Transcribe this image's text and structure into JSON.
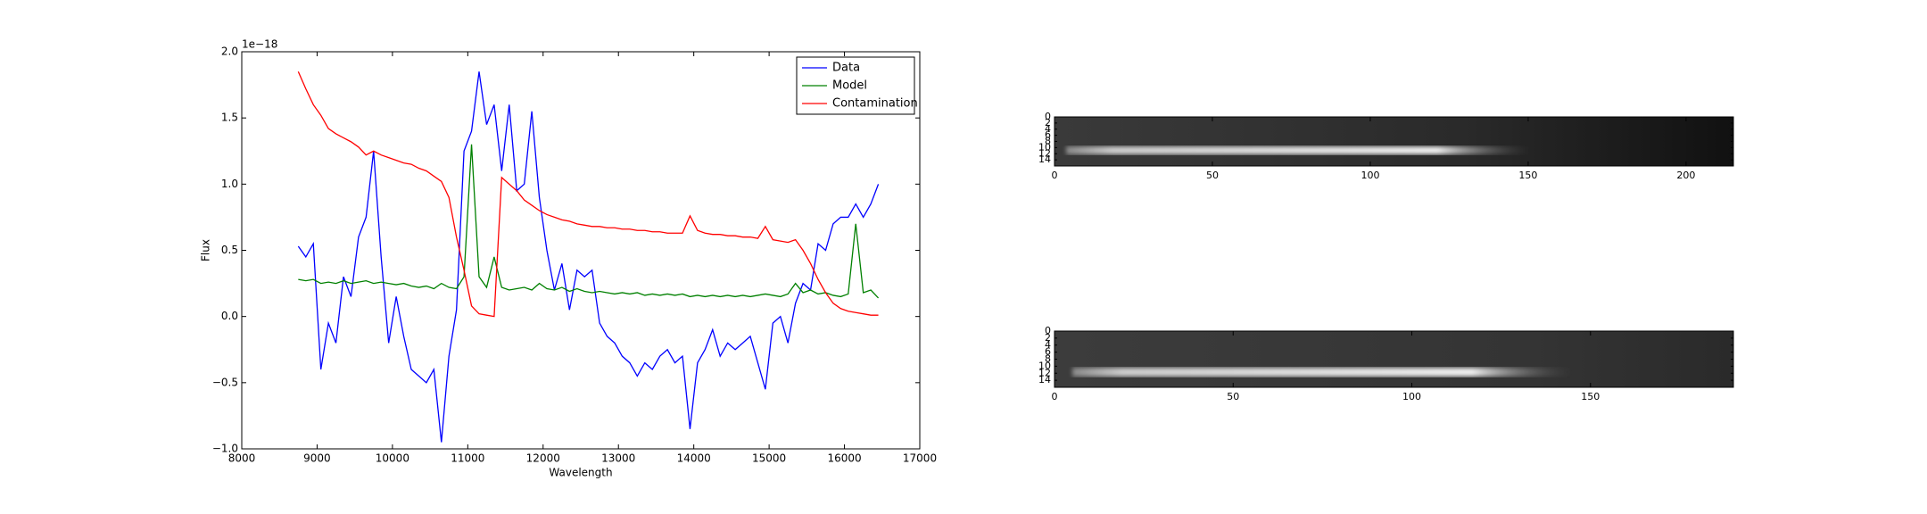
{
  "chart_data": [
    {
      "type": "line",
      "x_label": "Wavelength",
      "y_label": "Flux",
      "y_offset_label": "1e−18",
      "legend": "upper right",
      "xlim": [
        8000,
        17000
      ],
      "xticks": [
        8000,
        9000,
        10000,
        11000,
        12000,
        13000,
        14000,
        15000,
        16000,
        17000
      ],
      "ylim": [
        -1.0,
        2.0
      ],
      "yticks": [
        {
          "value": -1.0,
          "label": "−1.0"
        },
        {
          "value": -0.5,
          "label": "−0.5"
        },
        {
          "value": 0.0,
          "label": "0.0"
        },
        {
          "value": 0.5,
          "label": "0.5"
        },
        {
          "value": 1.0,
          "label": "1.0"
        },
        {
          "value": 1.5,
          "label": "1.5"
        },
        {
          "value": 2.0,
          "label": "2.0"
        }
      ],
      "x": [
        8750,
        8850,
        8950,
        9050,
        9150,
        9250,
        9350,
        9450,
        9550,
        9650,
        9750,
        9850,
        9950,
        10050,
        10150,
        10250,
        10350,
        10450,
        10550,
        10650,
        10750,
        10850,
        10950,
        11050,
        11150,
        11250,
        11350,
        11450,
        11550,
        11650,
        11750,
        11850,
        11950,
        12050,
        12150,
        12250,
        12350,
        12450,
        12550,
        12650,
        12750,
        12850,
        12950,
        13050,
        13150,
        13250,
        13350,
        13450,
        13550,
        13650,
        13750,
        13850,
        13950,
        14050,
        14150,
        14250,
        14350,
        14450,
        14550,
        14650,
        14750,
        14850,
        14950,
        15050,
        15150,
        15250,
        15350,
        15450,
        15550,
        15650,
        15750,
        15850,
        15950,
        16050,
        16150,
        16250,
        16350,
        16450
      ],
      "series": [
        {
          "name": "Data",
          "color": "#0000ff",
          "values": [
            0.53,
            0.45,
            0.55,
            -0.4,
            -0.05,
            -0.2,
            0.3,
            0.15,
            0.6,
            0.75,
            1.25,
            0.45,
            -0.2,
            0.15,
            -0.15,
            -0.4,
            -0.45,
            -0.5,
            -0.4,
            -0.95,
            -0.3,
            0.05,
            1.25,
            1.4,
            1.85,
            1.45,
            1.6,
            1.1,
            1.6,
            0.95,
            1.0,
            1.55,
            0.9,
            0.5,
            0.2,
            0.4,
            0.05,
            0.35,
            0.3,
            0.35,
            -0.05,
            -0.15,
            -0.2,
            -0.3,
            -0.35,
            -0.45,
            -0.35,
            -0.4,
            -0.3,
            -0.25,
            -0.35,
            -0.3,
            -0.85,
            -0.35,
            -0.25,
            -0.1,
            -0.3,
            -0.2,
            -0.25,
            -0.2,
            -0.15,
            -0.35,
            -0.55,
            -0.05,
            0.0,
            -0.2,
            0.1,
            0.25,
            0.2,
            0.55,
            0.5,
            0.7,
            0.75,
            0.75,
            0.85,
            0.75,
            0.85,
            1.0
          ]
        },
        {
          "name": "Model",
          "color": "#008000",
          "values": [
            0.28,
            0.27,
            0.28,
            0.25,
            0.26,
            0.25,
            0.27,
            0.25,
            0.26,
            0.27,
            0.25,
            0.26,
            0.25,
            0.24,
            0.25,
            0.23,
            0.22,
            0.23,
            0.21,
            0.25,
            0.22,
            0.21,
            0.3,
            1.3,
            0.3,
            0.22,
            0.45,
            0.22,
            0.2,
            0.21,
            0.22,
            0.2,
            0.25,
            0.21,
            0.2,
            0.22,
            0.19,
            0.21,
            0.19,
            0.18,
            0.19,
            0.18,
            0.17,
            0.18,
            0.17,
            0.18,
            0.16,
            0.17,
            0.16,
            0.17,
            0.16,
            0.17,
            0.15,
            0.16,
            0.15,
            0.16,
            0.15,
            0.16,
            0.15,
            0.16,
            0.15,
            0.16,
            0.17,
            0.16,
            0.15,
            0.17,
            0.25,
            0.18,
            0.2,
            0.17,
            0.18,
            0.16,
            0.15,
            0.17,
            0.7,
            0.18,
            0.2,
            0.14
          ]
        },
        {
          "name": "Contamination",
          "color": "#ff0000",
          "values": [
            1.85,
            1.72,
            1.6,
            1.52,
            1.42,
            1.38,
            1.35,
            1.32,
            1.28,
            1.22,
            1.25,
            1.22,
            1.2,
            1.18,
            1.16,
            1.15,
            1.12,
            1.1,
            1.06,
            1.02,
            0.9,
            0.6,
            0.35,
            0.08,
            0.02,
            0.01,
            0.0,
            1.05,
            1.0,
            0.95,
            0.88,
            0.84,
            0.8,
            0.77,
            0.75,
            0.73,
            0.72,
            0.7,
            0.69,
            0.68,
            0.68,
            0.67,
            0.67,
            0.66,
            0.66,
            0.65,
            0.65,
            0.64,
            0.64,
            0.63,
            0.63,
            0.63,
            0.76,
            0.65,
            0.63,
            0.62,
            0.62,
            0.61,
            0.61,
            0.6,
            0.6,
            0.59,
            0.68,
            0.58,
            0.57,
            0.56,
            0.58,
            0.5,
            0.4,
            0.28,
            0.18,
            0.1,
            0.06,
            0.04,
            0.03,
            0.02,
            0.01,
            0.01
          ]
        }
      ]
    },
    {
      "type": "image",
      "xlim": [
        0,
        215
      ],
      "xticks": [
        0,
        50,
        100,
        150,
        200
      ],
      "ylim": [
        16,
        0
      ],
      "yticks": [
        0,
        2,
        4,
        6,
        8,
        10,
        12,
        14
      ]
    },
    {
      "type": "image",
      "xlim": [
        0,
        190
      ],
      "xticks": [
        0,
        50,
        100,
        150
      ],
      "ylim": [
        16,
        0
      ],
      "yticks": [
        0,
        2,
        4,
        6,
        8,
        10,
        12,
        14
      ]
    }
  ]
}
